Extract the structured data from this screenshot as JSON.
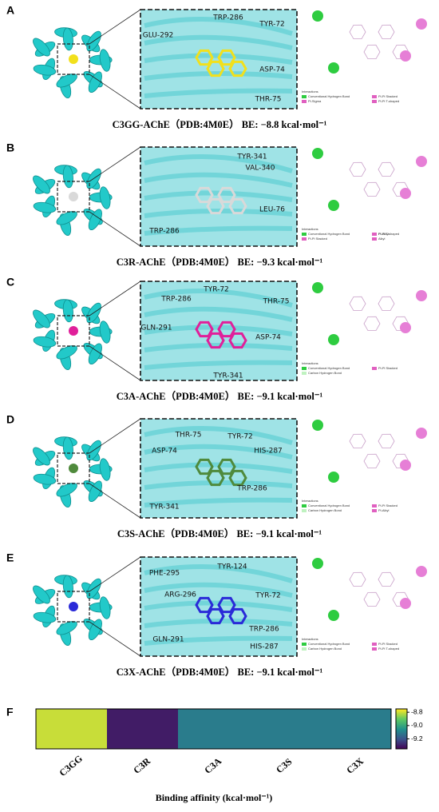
{
  "panels": [
    {
      "letter": "A",
      "residues": [
        "GLU-292",
        "TRP-286",
        "TYR-72",
        "ASP-74",
        "THR-75"
      ],
      "legend_title": "Interactions",
      "legend": [
        "Conventional Hydrogen Bond",
        "Pi-Sigma",
        "Pi-Pi Stacked",
        "Pi-Pi T-shaped"
      ],
      "caption": "C3GG-AChE（PDB:4M0E） BE: −8.8 kcal·mol⁻¹"
    },
    {
      "letter": "B",
      "residues": [
        "TYR-341",
        "VAL-340",
        "LEU-76",
        "TRP-286"
      ],
      "legend_title": "Interactions",
      "legend": [
        "Conventional Hydrogen Bond",
        "Pi-Pi Stacked",
        "Pi-Pi T-shaped",
        "Alkyl",
        "Pi-Alkyl"
      ],
      "caption": "C3R-AChE（PDB:4M0E） BE: −9.3 kcal·mol⁻¹"
    },
    {
      "letter": "C",
      "residues": [
        "TRP-286",
        "TYR-72",
        "THR-75",
        "GLN-291",
        "ASP-74",
        "TYR-341"
      ],
      "legend_title": "Interactions",
      "legend": [
        "Conventional Hydrogen Bond",
        "Carbon Hydrogen Bond",
        "Pi-Pi Stacked"
      ],
      "caption": "C3A-AChE（PDB:4M0E） BE: −9.1 kcal·mol⁻¹"
    },
    {
      "letter": "D",
      "residues": [
        "THR-75",
        "TYR-72",
        "ASP-74",
        "HIS-287",
        "TRP-286",
        "TYR-341"
      ],
      "legend_title": "Interactions",
      "legend": [
        "Conventional Hydrogen Bond",
        "Carbon Hydrogen Bond",
        "Pi-Pi Stacked",
        "Pi-Alkyl"
      ],
      "caption": "C3S-AChE（PDB:4M0E） BE: −9.1 kcal·mol⁻¹"
    },
    {
      "letter": "E",
      "residues": [
        "PHE-295",
        "TYR-124",
        "ARG-296",
        "TYR-72",
        "TRP-286",
        "GLN-291",
        "HIS-287"
      ],
      "legend_title": "Interactions",
      "legend": [
        "Conventional Hydrogen Bond",
        "Carbon Hydrogen Bond",
        "Pi-Pi Stacked",
        "Pi-Pi T-shaped"
      ],
      "caption": "C3X-AChE（PDB:4M0E） BE: −9.1 kcal·mol⁻¹"
    }
  ],
  "chart_data": {
    "type": "heatmap",
    "letter": "F",
    "categories": [
      "C3GG",
      "C3R",
      "C3A",
      "C3S",
      "C3X"
    ],
    "values": [
      -8.8,
      -9.3,
      -9.1,
      -9.1,
      -9.1
    ],
    "xlabel": "Binding affinity (kcal·mol⁻¹)",
    "colormap": "viridis",
    "clim": [
      -9.35,
      -8.75
    ],
    "cticks": [
      -8.8,
      {
        "value": -9.0,
        "label": "-9.0"
      },
      -9.2
    ]
  }
}
